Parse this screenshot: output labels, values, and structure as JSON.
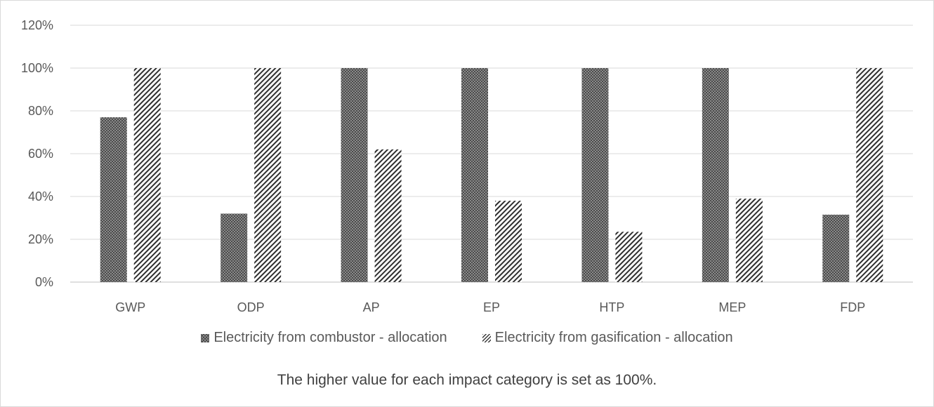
{
  "chart_data": {
    "type": "bar",
    "categories": [
      "GWP",
      "ODP",
      "AP",
      "EP",
      "HTP",
      "MEP",
      "FDP"
    ],
    "series": [
      {
        "name": "Electricity from combustor - allocation",
        "values": [
          77,
          32,
          100,
          100,
          100,
          100,
          31.5
        ],
        "pattern": "crosshatch",
        "color": "#3a3a3a"
      },
      {
        "name": "Electricity from gasification - allocation",
        "values": [
          100,
          100,
          62,
          38,
          23.5,
          39,
          100
        ],
        "pattern": "diagonal-stripes",
        "color": "#3a3a3a"
      }
    ],
    "y_ticks": [
      "0%",
      "20%",
      "40%",
      "60%",
      "80%",
      "100%",
      "120%"
    ],
    "ylim": [
      0,
      120
    ],
    "grid": true,
    "legend_position": "bottom",
    "title": "",
    "xlabel": "",
    "ylabel": ""
  },
  "note": "The higher value for each impact category is set as 100%."
}
